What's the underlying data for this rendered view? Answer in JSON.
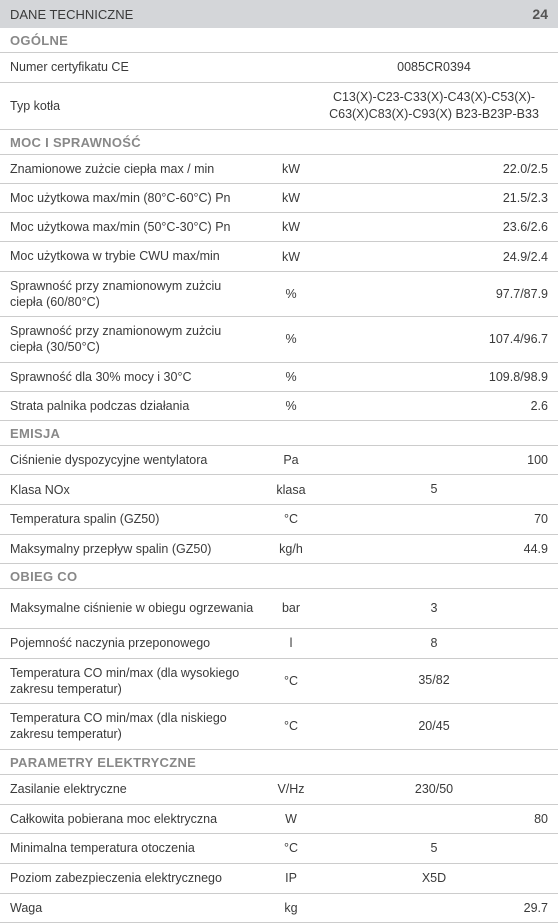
{
  "header": {
    "title": "DANE TECHNICZNE",
    "number": "24"
  },
  "sections": [
    {
      "title": "OGÓLNE",
      "rows": [
        {
          "label": "Numer certyfikatu CE",
          "unit": "",
          "value": "0085CR0394",
          "align": "center"
        },
        {
          "label": "Typ kotła",
          "unit": "",
          "value": "C13(X)-C23-C33(X)-C43(X)-C53(X)-C63(X)C83(X)-C93(X) B23-B23P-B33",
          "align": "center",
          "tall": true
        }
      ]
    },
    {
      "title": "MOC I SPRAWNOŚĆ",
      "rows": [
        {
          "label": "Znamionowe zużcie ciepła max / min",
          "unit": "kW",
          "value": "22.0/2.5",
          "align": "right"
        },
        {
          "label": "Moc użytkowa max/min (80°C-60°C) Pn",
          "unit": "kW",
          "value": "21.5/2.3",
          "align": "right"
        },
        {
          "label": "Moc użytkowa max/min (50°C-30°C) Pn",
          "unit": "kW",
          "value": "23.6/2.6",
          "align": "right"
        },
        {
          "label": "Moc użytkowa w trybie CWU max/min",
          "unit": "kW",
          "value": "24.9/2.4",
          "align": "right"
        },
        {
          "label": "Sprawność przy znamionowym zużciu ciepła (60/80°C)",
          "unit": "%",
          "value": "97.7/87.9",
          "align": "right",
          "tall": true
        },
        {
          "label": "Sprawność przy znamionowym zużciu ciepła (30/50°C)",
          "unit": "%",
          "value": "107.4/96.7",
          "align": "right",
          "tall": true
        },
        {
          "label": "Sprawność dla 30% mocy i 30°C",
          "unit": "%",
          "value": "109.8/98.9",
          "align": "right"
        },
        {
          "label": "Strata palnika podczas działania",
          "unit": "%",
          "value": "2.6",
          "align": "right"
        }
      ]
    },
    {
      "title": "EMISJA",
      "rows": [
        {
          "label": "Ciśnienie dyspozycyjne wentylatora",
          "unit": "Pa",
          "value": "100",
          "align": "right"
        },
        {
          "label": "Klasa NOx",
          "unit": "klasa",
          "value": "5",
          "align": "center"
        },
        {
          "label": "Temperatura spalin (GZ50)",
          "unit": "°C",
          "value": "70",
          "align": "right"
        },
        {
          "label": "Maksymalny przepływ spalin (GZ50)",
          "unit": "kg/h",
          "value": "44.9",
          "align": "right"
        }
      ]
    },
    {
      "title": "OBIEG CO",
      "rows": [
        {
          "label": "Maksymalne ciśnienie w obiegu ogrzewania",
          "unit": "bar",
          "value": "3",
          "align": "center",
          "tall": true
        },
        {
          "label": "Pojemność naczynia przeponowego",
          "unit": "l",
          "value": "8",
          "align": "center"
        },
        {
          "label": "Temperatura CO min/max (dla wysokiego zakresu temperatur)",
          "unit": "°C",
          "value": "35/82",
          "align": "center",
          "tall": true
        },
        {
          "label": "Temperatura CO min/max (dla niskiego zakresu temperatur)",
          "unit": "°C",
          "value": "20/45",
          "align": "center",
          "tall": true
        }
      ]
    },
    {
      "title": "PARAMETRY ELEKTRYCZNE",
      "rows": [
        {
          "label": "Zasilanie elektryczne",
          "unit": "V/Hz",
          "value": "230/50",
          "align": "center"
        },
        {
          "label": "Całkowita pobierana moc elektryczna",
          "unit": "W",
          "value": "80",
          "align": "right"
        },
        {
          "label": "Minimalna temperatura otoczenia",
          "unit": "°C",
          "value": "5",
          "align": "center"
        },
        {
          "label": "Poziom zabezpieczenia elektrycznego",
          "unit": "IP",
          "value": "X5D",
          "align": "center"
        },
        {
          "label": "Waga",
          "unit": "kg",
          "value": "29.7",
          "align": "right"
        }
      ]
    }
  ]
}
